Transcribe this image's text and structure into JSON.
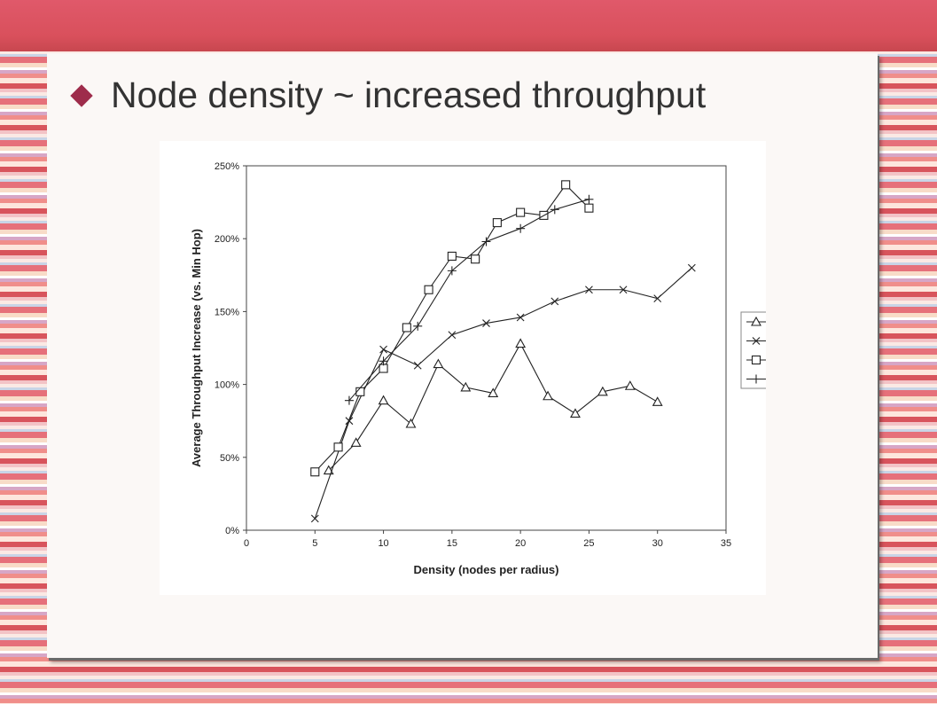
{
  "slide": {
    "title": "Node density ~ increased throughput",
    "bullet_icon": "diamond-bullet-icon",
    "accent_color": "#9e2c4b"
  },
  "chart_data": {
    "type": "line",
    "title": "",
    "xlabel": "Density (nodes per radius)",
    "ylabel": "Average Throughput Increase (vs. Min Hop)",
    "xlim": [
      0,
      35
    ],
    "ylim": [
      0,
      2.5
    ],
    "x_ticks": [
      "0",
      "5",
      "10",
      "15",
      "20",
      "25",
      "30",
      "35"
    ],
    "y_ticks": [
      "0%",
      "50%",
      "100%",
      "150%",
      "200%",
      "250%"
    ],
    "grid": false,
    "legend": "right",
    "series": [
      {
        "marker": "triangle",
        "points": [
          [
            6,
            0.41
          ],
          [
            8,
            0.6
          ],
          [
            10,
            0.89
          ],
          [
            12,
            0.73
          ],
          [
            14,
            1.14
          ],
          [
            16,
            0.98
          ],
          [
            18,
            0.94
          ],
          [
            20,
            1.28
          ],
          [
            22,
            0.92
          ],
          [
            24,
            0.8
          ],
          [
            26,
            0.95
          ],
          [
            28,
            0.99
          ],
          [
            30,
            0.88
          ]
        ]
      },
      {
        "marker": "x",
        "points": [
          [
            5,
            0.08
          ],
          [
            7.5,
            0.75
          ],
          [
            10,
            1.24
          ],
          [
            12.5,
            1.13
          ],
          [
            15,
            1.34
          ],
          [
            17.5,
            1.42
          ],
          [
            20,
            1.46
          ],
          [
            22.5,
            1.57
          ],
          [
            25,
            1.65
          ],
          [
            27.5,
            1.65
          ],
          [
            30,
            1.59
          ],
          [
            32.5,
            1.8
          ]
        ]
      },
      {
        "marker": "square",
        "points": [
          [
            5,
            0.4
          ],
          [
            6.7,
            0.57
          ],
          [
            8.3,
            0.95
          ],
          [
            10,
            1.11
          ],
          [
            11.7,
            1.39
          ],
          [
            13.3,
            1.65
          ],
          [
            15,
            1.88
          ],
          [
            16.7,
            1.86
          ],
          [
            18.3,
            2.11
          ],
          [
            20,
            2.18
          ],
          [
            21.7,
            2.16
          ],
          [
            23.3,
            2.37
          ],
          [
            25,
            2.21
          ]
        ]
      },
      {
        "marker": "plus",
        "points": [
          [
            7.5,
            0.89
          ],
          [
            10,
            1.16
          ],
          [
            12.5,
            1.4
          ],
          [
            15,
            1.78
          ],
          [
            17.5,
            1.98
          ],
          [
            20,
            2.07
          ],
          [
            22.5,
            2.2
          ],
          [
            25,
            2.27
          ]
        ]
      }
    ]
  }
}
